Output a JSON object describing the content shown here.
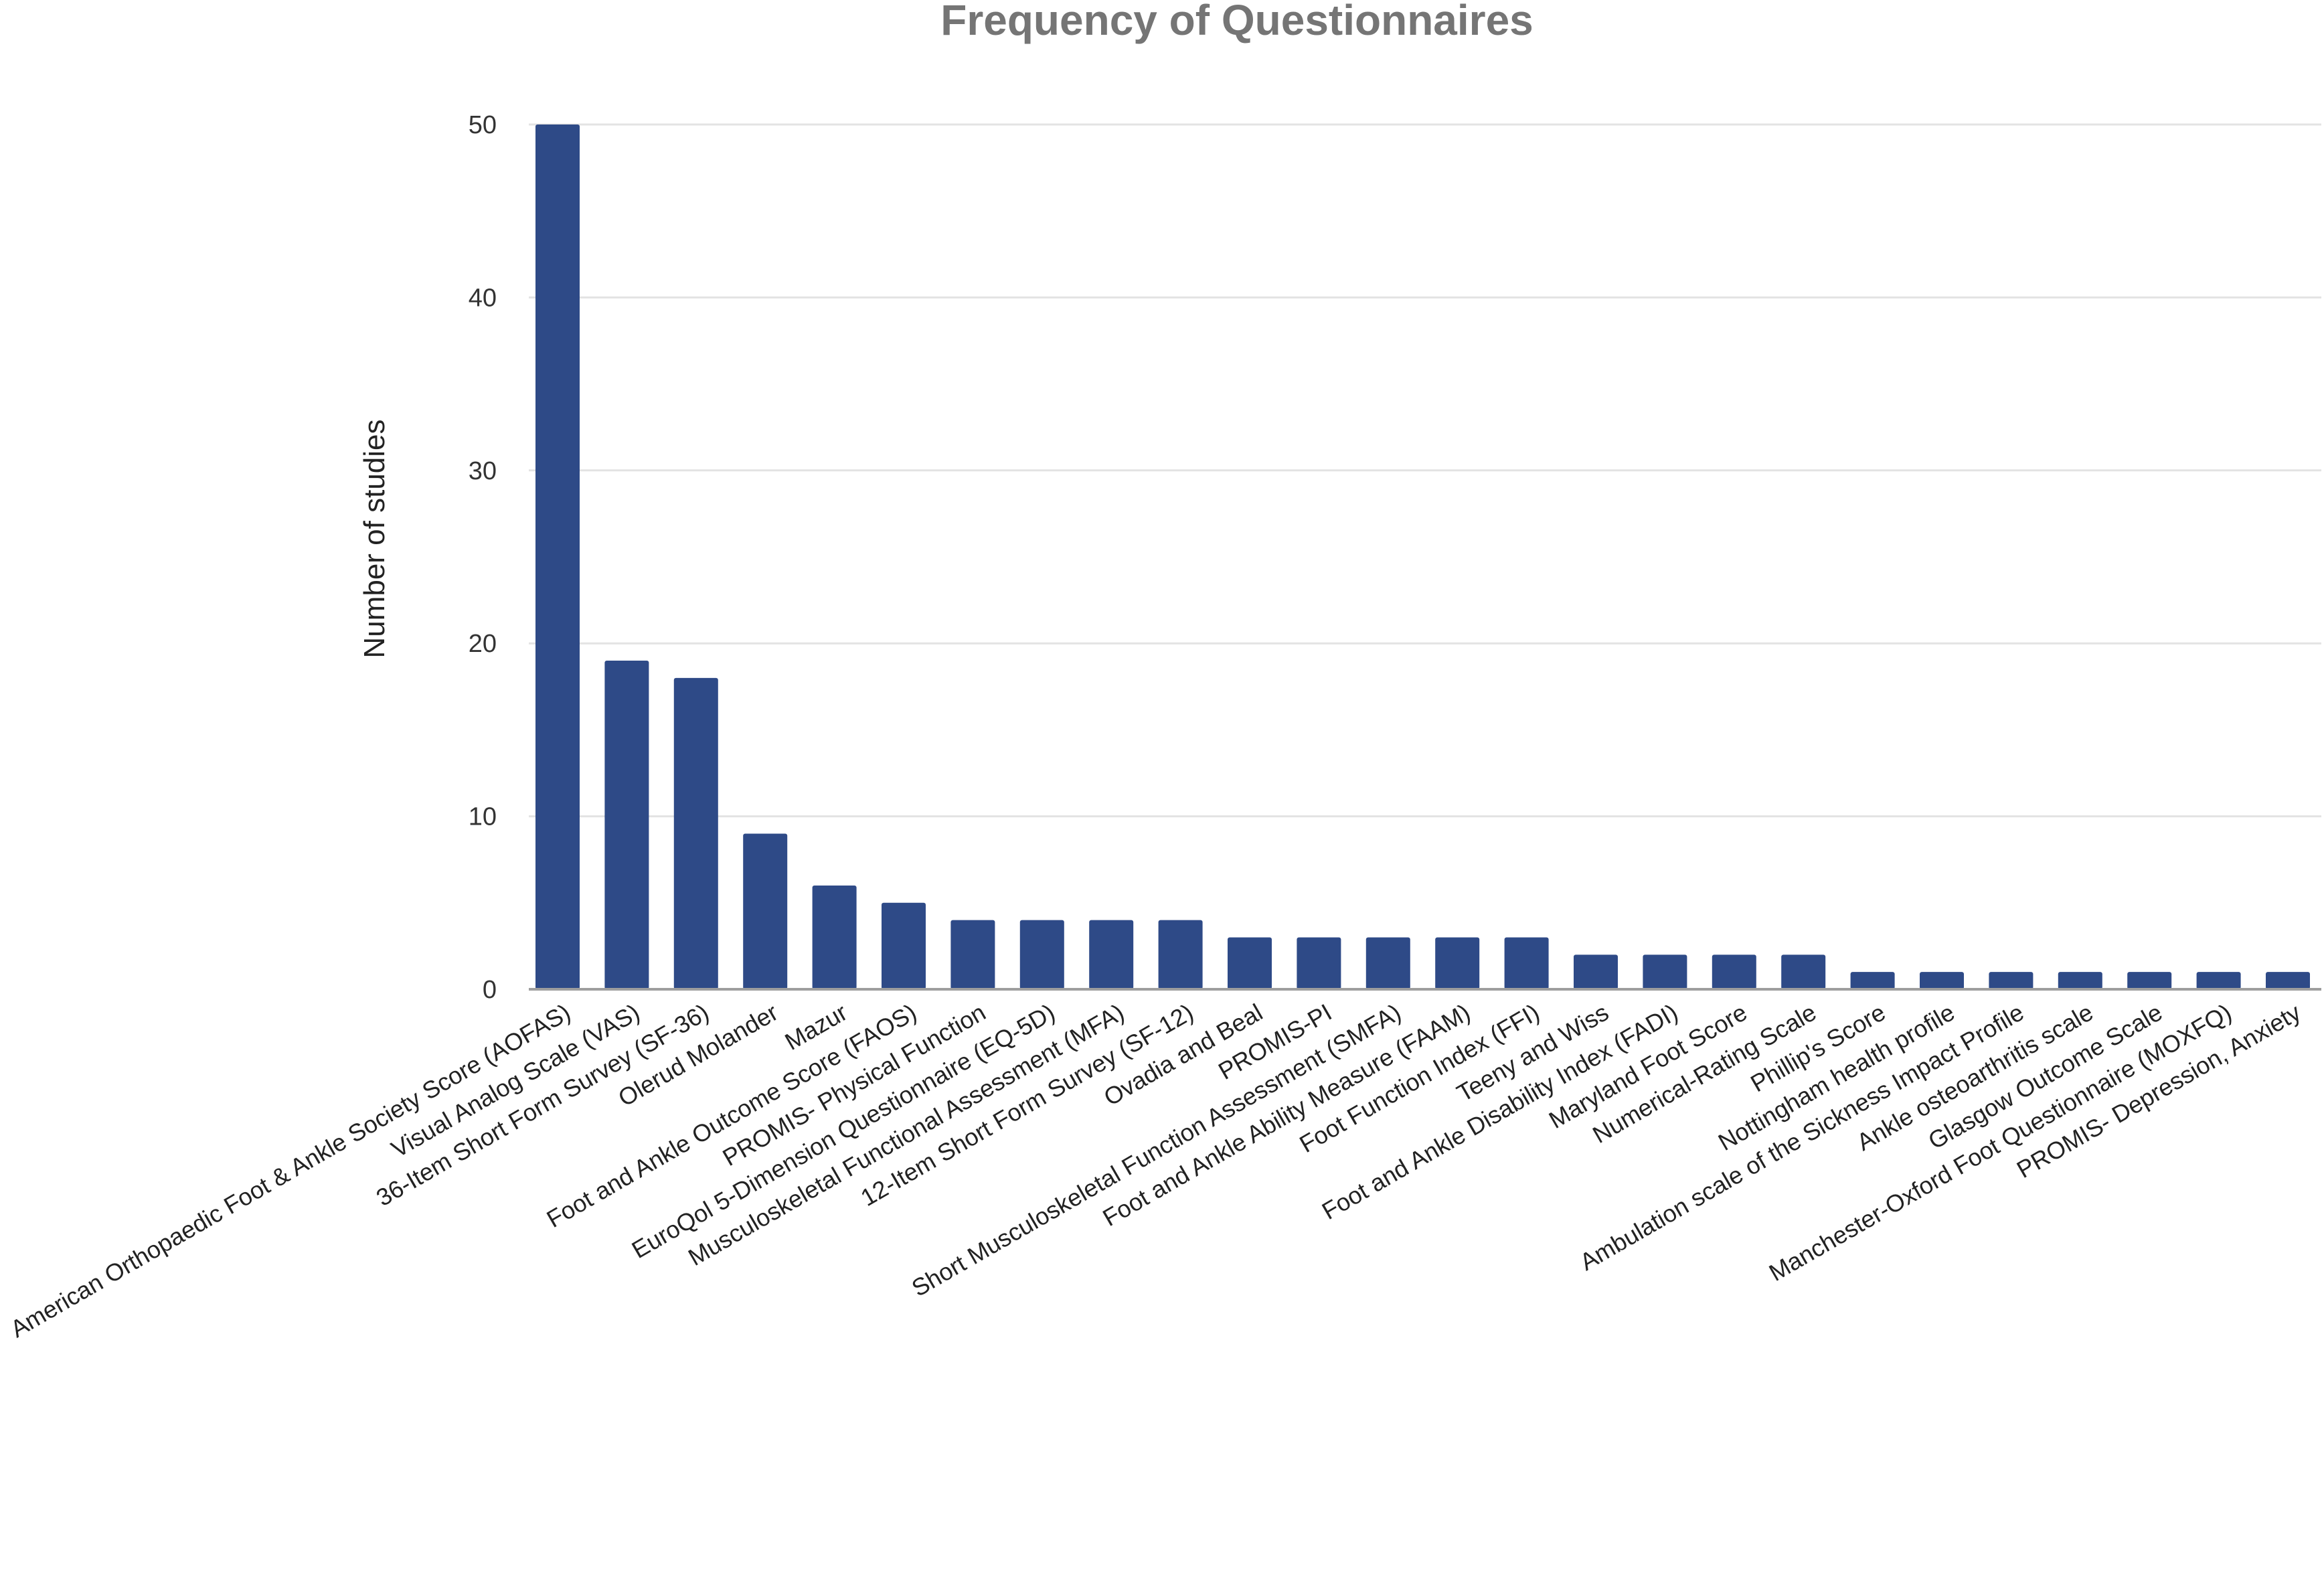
{
  "chart_data": {
    "type": "bar",
    "title": "Frequency of Questionnaires",
    "xlabel": "",
    "ylabel": "Number of studies",
    "ylim": [
      0,
      50
    ],
    "yticks": [
      0,
      10,
      20,
      30,
      40,
      50
    ],
    "grid": true,
    "legend": "none",
    "bar_color": "#2e4a87",
    "categories": [
      "American Orthopaedic Foot & Ankle Society Score (AOFAS)",
      "Visual Analog Scale (VAS)",
      "36-Item Short Form Survey (SF-36)",
      "Olerud Molander",
      "Mazur",
      "Foot and Ankle Outcome Score (FAOS)",
      "PROMIS- Physical Function",
      "EuroQol 5-Dimension Questionnaire (EQ-5D)",
      "Musculoskeletal Functional Assessment (MFA)",
      "12-Item Short Form Survey (SF-12)",
      "Ovadia and Beal",
      "PROMIS-PI",
      "Short Musculoskeletal Function Assessment (SMFA)",
      "Foot and Ankle Ability Measure (FAAM)",
      "Foot Function Index (FFI)",
      "Teeny and Wiss",
      "Foot and Ankle Disability Index (FADI)",
      "Maryland Foot Score",
      "Numerical-Rating Scale",
      "Phillip's Score",
      "Nottingham health profile",
      "Ambulation scale of the Sickness Impact Profile",
      "Ankle osteoarthritis scale",
      "Glasgow Outcome Scale",
      "Manchester-Oxford Foot Questionnaire (MOXFQ)",
      "PROMIS- Depression, Anxiety"
    ],
    "values": [
      50,
      19,
      18,
      9,
      6,
      5,
      4,
      4,
      4,
      4,
      3,
      3,
      3,
      3,
      3,
      2,
      2,
      2,
      2,
      1,
      1,
      1,
      1,
      1,
      1,
      1
    ]
  }
}
